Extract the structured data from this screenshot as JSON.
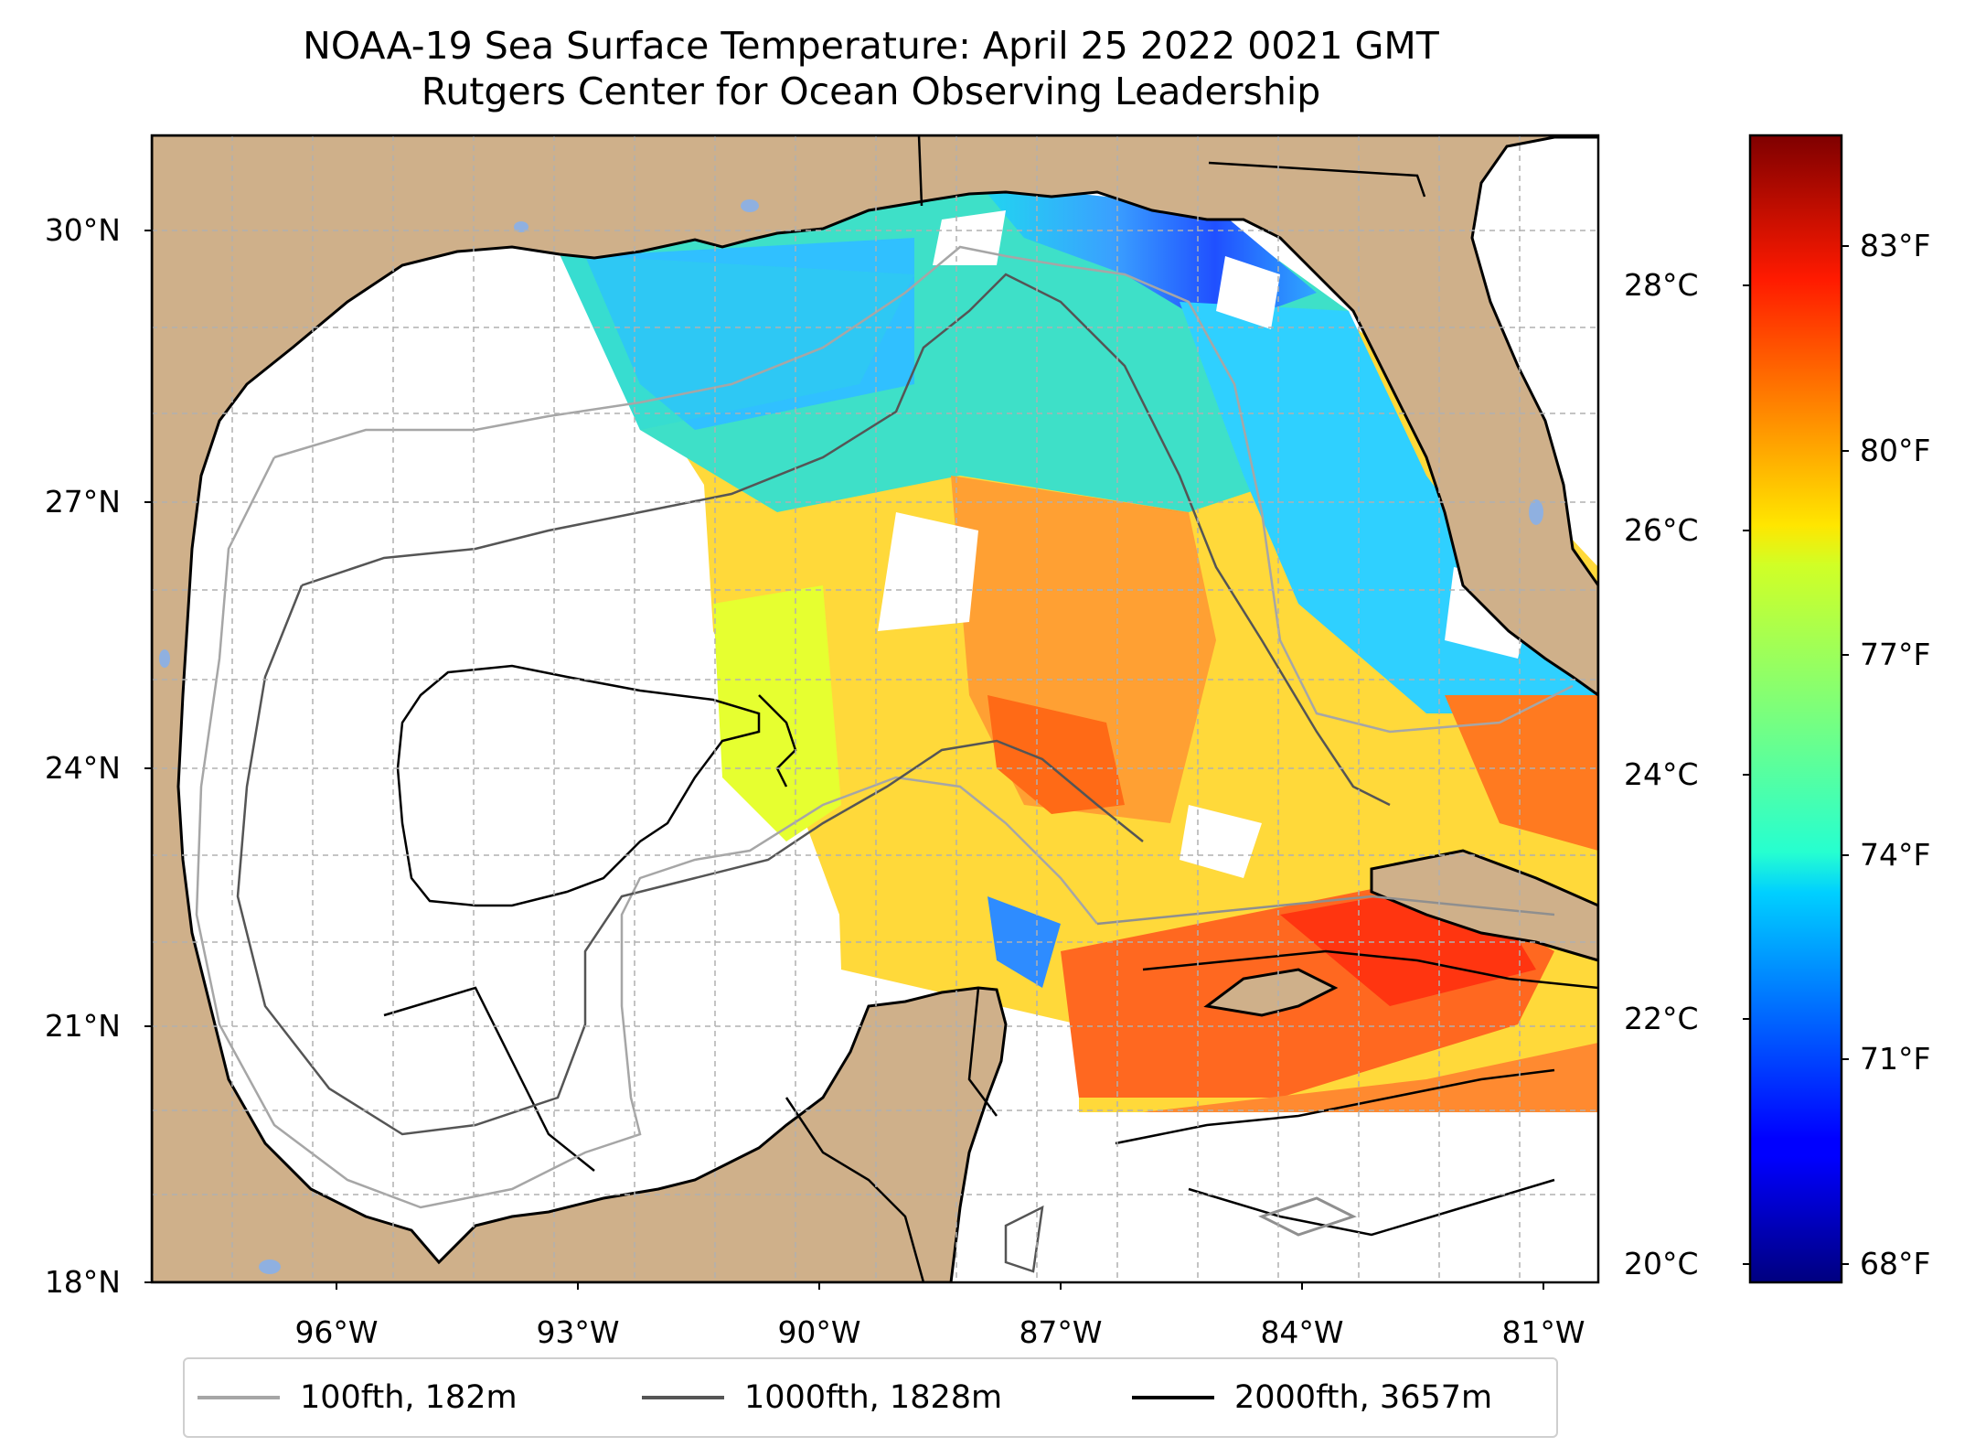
{
  "title": {
    "line1": "NOAA-19 Sea Surface Temperature: April 25 2022 0021 GMT",
    "line2": "Rutgers Center for Ocean Observing Leadership"
  },
  "map": {
    "region": "Gulf of Mexico",
    "lon_range": [
      -98.25,
      -80.25
    ],
    "lat_range": [
      18,
      31
    ],
    "land_color": "#cfb08a",
    "grid": "dashed gray",
    "lat_ticks": [
      "30°N",
      "27°N",
      "24°N",
      "21°N",
      "18°N"
    ],
    "lon_ticks": [
      "96°W",
      "93°W",
      "90°W",
      "87°W",
      "84°W",
      "81°W"
    ]
  },
  "colorbar": {
    "colormap": "jet",
    "range_f": [
      67.5,
      85
    ],
    "celsius_ticks": [
      "28°C",
      "26°C",
      "24°C",
      "22°C",
      "20°C"
    ],
    "fahrenheit_ticks": [
      "83°F",
      "80°F",
      "77°F",
      "74°F",
      "71°F",
      "68°F"
    ]
  },
  "legend": {
    "items": [
      {
        "label": "100fth, 182m",
        "color": "#a6a6a6"
      },
      {
        "label": "1000fth, 1828m",
        "color": "#555555"
      },
      {
        "label": "2000fth, 3657m",
        "color": "#000000"
      }
    ]
  }
}
